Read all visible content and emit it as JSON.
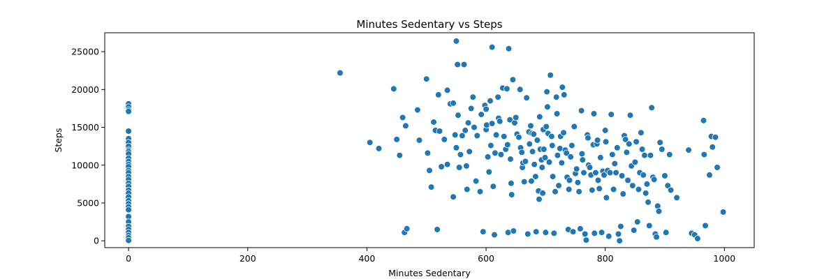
{
  "chart_data": {
    "type": "scatter",
    "title": "Minutes Sedentary vs Steps",
    "xlabel": "Minutes Sedentary",
    "ylabel": "Steps",
    "xlim": [
      -40,
      1050
    ],
    "ylim": [
      -900,
      27500
    ],
    "xticks": [
      0,
      200,
      400,
      600,
      800,
      1000
    ],
    "yticks": [
      0,
      5000,
      10000,
      15000,
      20000,
      25000
    ],
    "grid": false,
    "point_color": "#1f77b4",
    "points": [
      [
        0,
        18100
      ],
      [
        0,
        17700
      ],
      [
        0,
        17300
      ],
      [
        0,
        17100
      ],
      [
        0,
        14500
      ],
      [
        0,
        13500
      ],
      [
        0,
        13000
      ],
      [
        0,
        12500
      ],
      [
        0,
        12000
      ],
      [
        0,
        11800
      ],
      [
        0,
        11500
      ],
      [
        0,
        10900
      ],
      [
        0,
        10500
      ],
      [
        0,
        10100
      ],
      [
        0,
        9800
      ],
      [
        0,
        9300
      ],
      [
        0,
        9000
      ],
      [
        0,
        8500
      ],
      [
        0,
        8100
      ],
      [
        0,
        7600
      ],
      [
        0,
        7200
      ],
      [
        0,
        6700
      ],
      [
        0,
        6300
      ],
      [
        0,
        5800
      ],
      [
        0,
        5300
      ],
      [
        0,
        4900
      ],
      [
        0,
        4500
      ],
      [
        0,
        4100
      ],
      [
        0,
        3200
      ],
      [
        0,
        2500
      ],
      [
        0,
        1900
      ],
      [
        0,
        1500
      ],
      [
        0,
        1100
      ],
      [
        0,
        700
      ],
      [
        0,
        400
      ],
      [
        0,
        50
      ],
      [
        355,
        22200
      ],
      [
        405,
        13000
      ],
      [
        420,
        12200
      ],
      [
        445,
        20100
      ],
      [
        450,
        13400
      ],
      [
        455,
        11300
      ],
      [
        460,
        16300
      ],
      [
        463,
        1100
      ],
      [
        465,
        15200
      ],
      [
        467,
        1600
      ],
      [
        485,
        17300
      ],
      [
        488,
        13300
      ],
      [
        500,
        21400
      ],
      [
        502,
        11600
      ],
      [
        505,
        9300
      ],
      [
        508,
        7100
      ],
      [
        512,
        15700
      ],
      [
        515,
        14600
      ],
      [
        518,
        1500
      ],
      [
        520,
        19300
      ],
      [
        522,
        14500
      ],
      [
        525,
        9800
      ],
      [
        530,
        13400
      ],
      [
        535,
        19900
      ],
      [
        535,
        10100
      ],
      [
        540,
        18100
      ],
      [
        545,
        18200
      ],
      [
        545,
        5800
      ],
      [
        548,
        14000
      ],
      [
        550,
        26400
      ],
      [
        550,
        12300
      ],
      [
        552,
        23300
      ],
      [
        553,
        16600
      ],
      [
        555,
        9700
      ],
      [
        557,
        11400
      ],
      [
        560,
        13900
      ],
      [
        563,
        23300
      ],
      [
        565,
        14600
      ],
      [
        567,
        9900
      ],
      [
        568,
        6800
      ],
      [
        570,
        15600
      ],
      [
        572,
        11800
      ],
      [
        575,
        17500
      ],
      [
        578,
        19000
      ],
      [
        580,
        15000
      ],
      [
        583,
        7900
      ],
      [
        585,
        13900
      ],
      [
        590,
        6500
      ],
      [
        592,
        16700
      ],
      [
        595,
        1200
      ],
      [
        598,
        17900
      ],
      [
        600,
        17400
      ],
      [
        600,
        14700
      ],
      [
        601,
        15300
      ],
      [
        603,
        11100
      ],
      [
        605,
        9100
      ],
      [
        607,
        18500
      ],
      [
        608,
        12600
      ],
      [
        610,
        25600
      ],
      [
        610,
        15500
      ],
      [
        612,
        7200
      ],
      [
        614,
        800
      ],
      [
        615,
        11600
      ],
      [
        617,
        14000
      ],
      [
        620,
        19000
      ],
      [
        621,
        16200
      ],
      [
        623,
        15800
      ],
      [
        625,
        11400
      ],
      [
        628,
        20200
      ],
      [
        630,
        13800
      ],
      [
        633,
        12100
      ],
      [
        635,
        20100
      ],
      [
        636,
        12700
      ],
      [
        637,
        1100
      ],
      [
        638,
        25400
      ],
      [
        640,
        16000
      ],
      [
        641,
        10800
      ],
      [
        642,
        7600
      ],
      [
        643,
        6100
      ],
      [
        645,
        21300
      ],
      [
        646,
        1300
      ],
      [
        648,
        15600
      ],
      [
        650,
        16300
      ],
      [
        652,
        14100
      ],
      [
        655,
        13700
      ],
      [
        657,
        20000
      ],
      [
        658,
        12300
      ],
      [
        660,
        11700
      ],
      [
        661,
        9700
      ],
      [
        662,
        10300
      ],
      [
        664,
        7800
      ],
      [
        666,
        10500
      ],
      [
        668,
        18900
      ],
      [
        670,
        900
      ],
      [
        672,
        14400
      ],
      [
        673,
        12800
      ],
      [
        675,
        15200
      ],
      [
        676,
        7900
      ],
      [
        677,
        14200
      ],
      [
        678,
        11800
      ],
      [
        680,
        14100
      ],
      [
        681,
        10100
      ],
      [
        683,
        8500
      ],
      [
        684,
        1200
      ],
      [
        686,
        13300
      ],
      [
        688,
        6600
      ],
      [
        689,
        5500
      ],
      [
        690,
        16400
      ],
      [
        691,
        12100
      ],
      [
        693,
        10700
      ],
      [
        694,
        9700
      ],
      [
        695,
        6300
      ],
      [
        696,
        14700
      ],
      [
        697,
        12100
      ],
      [
        699,
        11000
      ],
      [
        700,
        1100
      ],
      [
        701,
        15100
      ],
      [
        702,
        19700
      ],
      [
        703,
        17700
      ],
      [
        704,
        14200
      ],
      [
        706,
        10400
      ],
      [
        708,
        21900
      ],
      [
        710,
        13800
      ],
      [
        711,
        12600
      ],
      [
        712,
        8500
      ],
      [
        714,
        1000
      ],
      [
        716,
        6500
      ],
      [
        718,
        19000
      ],
      [
        719,
        16800
      ],
      [
        720,
        11300
      ],
      [
        722,
        7300
      ],
      [
        724,
        12200
      ],
      [
        725,
        13800
      ],
      [
        727,
        10300
      ],
      [
        728,
        20300
      ],
      [
        730,
        14300
      ],
      [
        731,
        19300
      ],
      [
        733,
        12000
      ],
      [
        735,
        11600
      ],
      [
        736,
        8400
      ],
      [
        738,
        1500
      ],
      [
        739,
        6800
      ],
      [
        740,
        8000
      ],
      [
        742,
        11100
      ],
      [
        744,
        12600
      ],
      [
        746,
        1200
      ],
      [
        748,
        15100
      ],
      [
        750,
        8900
      ],
      [
        752,
        9500
      ],
      [
        754,
        7700
      ],
      [
        756,
        6500
      ],
      [
        758,
        1600
      ],
      [
        760,
        17200
      ],
      [
        761,
        11500
      ],
      [
        762,
        10700
      ],
      [
        764,
        9000
      ],
      [
        766,
        900
      ],
      [
        768,
        100
      ],
      [
        770,
        14000
      ],
      [
        771,
        13600
      ],
      [
        772,
        10000
      ],
      [
        774,
        9700
      ],
      [
        776,
        8700
      ],
      [
        778,
        6700
      ],
      [
        780,
        12700
      ],
      [
        781,
        16800
      ],
      [
        782,
        1000
      ],
      [
        784,
        9000
      ],
      [
        786,
        12800
      ],
      [
        787,
        13300
      ],
      [
        788,
        8000
      ],
      [
        790,
        6900
      ],
      [
        792,
        11000
      ],
      [
        794,
        1100
      ],
      [
        796,
        9200
      ],
      [
        798,
        8700
      ],
      [
        800,
        14600
      ],
      [
        801,
        13100
      ],
      [
        802,
        5700
      ],
      [
        804,
        9300
      ],
      [
        806,
        600
      ],
      [
        808,
        9000
      ],
      [
        810,
        16700
      ],
      [
        812,
        11400
      ],
      [
        814,
        6800
      ],
      [
        816,
        10200
      ],
      [
        818,
        9000
      ],
      [
        820,
        12300
      ],
      [
        822,
        900
      ],
      [
        824,
        0
      ],
      [
        826,
        1900
      ],
      [
        828,
        8600
      ],
      [
        830,
        6200
      ],
      [
        832,
        13900
      ],
      [
        834,
        13400
      ],
      [
        836,
        11700
      ],
      [
        838,
        8000
      ],
      [
        840,
        12800
      ],
      [
        842,
        16600
      ],
      [
        844,
        9900
      ],
      [
        846,
        7300
      ],
      [
        848,
        1400
      ],
      [
        850,
        10400
      ],
      [
        852,
        13100
      ],
      [
        854,
        2500
      ],
      [
        856,
        6800
      ],
      [
        858,
        9000
      ],
      [
        860,
        14300
      ],
      [
        862,
        12100
      ],
      [
        864,
        8700
      ],
      [
        866,
        11300
      ],
      [
        868,
        6300
      ],
      [
        870,
        7500
      ],
      [
        872,
        5100
      ],
      [
        874,
        2000
      ],
      [
        876,
        11300
      ],
      [
        878,
        17600
      ],
      [
        880,
        8400
      ],
      [
        882,
        8100
      ],
      [
        884,
        900
      ],
      [
        886,
        500
      ],
      [
        888,
        4600
      ],
      [
        890,
        3900
      ],
      [
        892,
        13000
      ],
      [
        895,
        12100
      ],
      [
        900,
        8600
      ],
      [
        902,
        1100
      ],
      [
        905,
        7300
      ],
      [
        908,
        11400
      ],
      [
        910,
        6700
      ],
      [
        920,
        5700
      ],
      [
        940,
        12000
      ],
      [
        945,
        1000
      ],
      [
        950,
        800
      ],
      [
        955,
        300
      ],
      [
        965,
        15900
      ],
      [
        966,
        11400
      ],
      [
        968,
        2000
      ],
      [
        975,
        8700
      ],
      [
        978,
        13800
      ],
      [
        980,
        12400
      ],
      [
        985,
        13700
      ],
      [
        988,
        9700
      ],
      [
        998,
        3800
      ]
    ]
  }
}
